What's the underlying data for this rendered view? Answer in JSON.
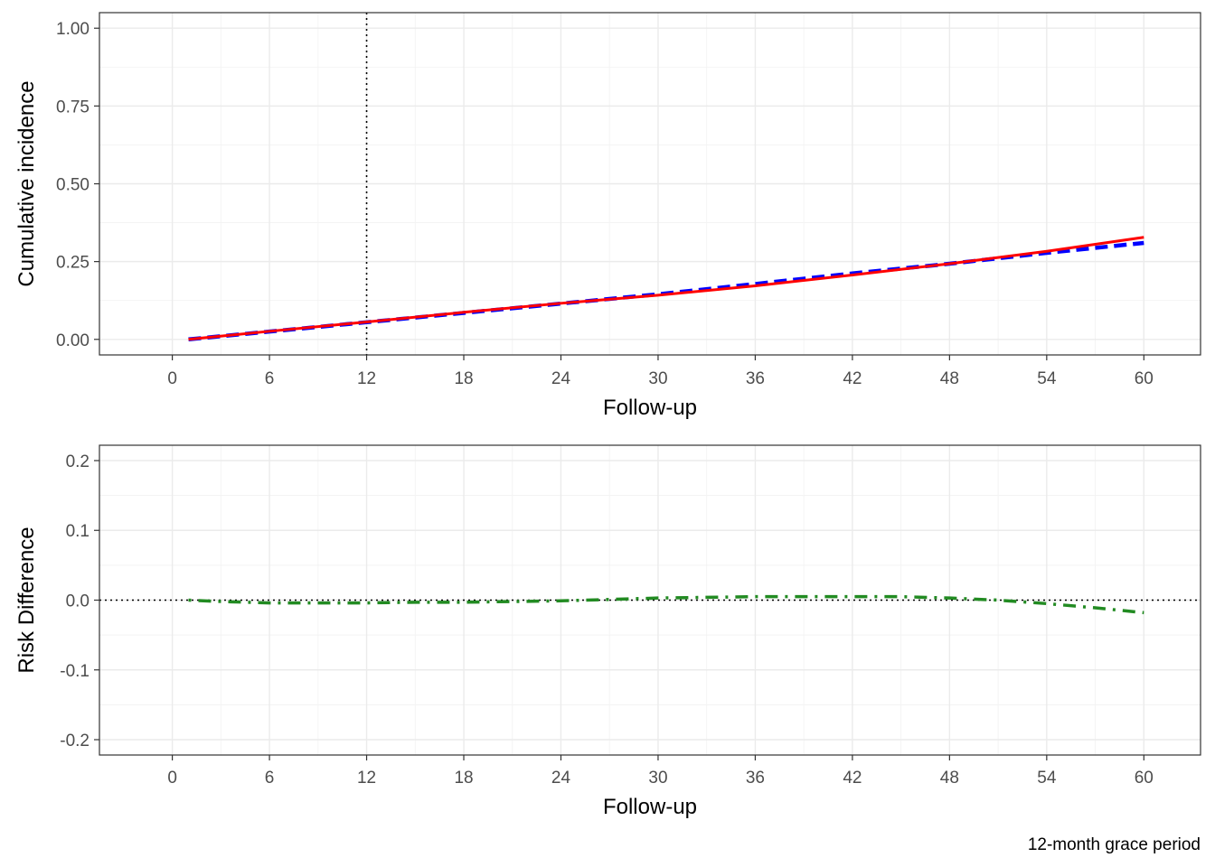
{
  "caption": "12-month grace period",
  "colors": {
    "series_a": "#0000ff",
    "series_b": "#ff0000",
    "risk_difference": "#228b22",
    "reference_lines": "#000000"
  },
  "chart_data": [
    {
      "type": "line",
      "xlabel": "Follow-up",
      "ylabel": "Cumulative incidence",
      "xlim": [
        -4.5,
        63.5
      ],
      "ylim": [
        -0.05,
        1.05
      ],
      "x_ticks": [
        0,
        6,
        12,
        18,
        24,
        30,
        36,
        42,
        48,
        54,
        60
      ],
      "x_tick_labels": [
        "0",
        "6",
        "12",
        "18",
        "24",
        "30",
        "36",
        "42",
        "48",
        "54",
        "60"
      ],
      "y_ticks": [
        0,
        0.25,
        0.5,
        0.75,
        1.0
      ],
      "y_tick_labels": [
        "0.00",
        "0.25",
        "0.50",
        "0.75",
        "1.00"
      ],
      "grid": true,
      "vline": {
        "x": 12,
        "style": "dotted"
      },
      "x": [
        1,
        6,
        12,
        18,
        24,
        30,
        36,
        42,
        48,
        54,
        60
      ],
      "series": [
        {
          "color": "#0000ff",
          "line_style": "dashed",
          "values": [
            0.0,
            0.025,
            0.055,
            0.085,
            0.115,
            0.145,
            0.178,
            0.212,
            0.243,
            0.278,
            0.31
          ]
        },
        {
          "color": "#ff0000",
          "line_style": "solid",
          "values": [
            0.0,
            0.026,
            0.056,
            0.087,
            0.116,
            0.142,
            0.172,
            0.207,
            0.243,
            0.283,
            0.328
          ]
        }
      ]
    },
    {
      "type": "line",
      "xlabel": "Follow-up",
      "ylabel": "Risk Difference",
      "xlim": [
        -4.5,
        63.5
      ],
      "ylim": [
        -0.222,
        0.222
      ],
      "x_ticks": [
        0,
        6,
        12,
        18,
        24,
        30,
        36,
        42,
        48,
        54,
        60
      ],
      "x_tick_labels": [
        "0",
        "6",
        "12",
        "18",
        "24",
        "30",
        "36",
        "42",
        "48",
        "54",
        "60"
      ],
      "y_ticks": [
        -0.2,
        -0.1,
        0.0,
        0.1,
        0.2
      ],
      "y_tick_labels": [
        "-0.2",
        "-0.1",
        "0.0",
        "0.1",
        "0.2"
      ],
      "grid": true,
      "hline": {
        "y": 0,
        "style": "dotted"
      },
      "x": [
        1,
        3,
        6,
        9,
        12,
        15,
        18,
        21,
        24,
        27,
        30,
        33,
        36,
        39,
        42,
        45,
        48,
        51,
        54,
        57,
        60
      ],
      "series": [
        {
          "color": "#228b22",
          "line_style": "dotdash",
          "values": [
            0.0,
            -0.002,
            -0.004,
            -0.004,
            -0.004,
            -0.003,
            -0.003,
            -0.002,
            -0.001,
            0.001,
            0.003,
            0.004,
            0.005,
            0.005,
            0.005,
            0.005,
            0.003,
            0.0,
            -0.005,
            -0.011,
            -0.018
          ]
        }
      ]
    }
  ]
}
